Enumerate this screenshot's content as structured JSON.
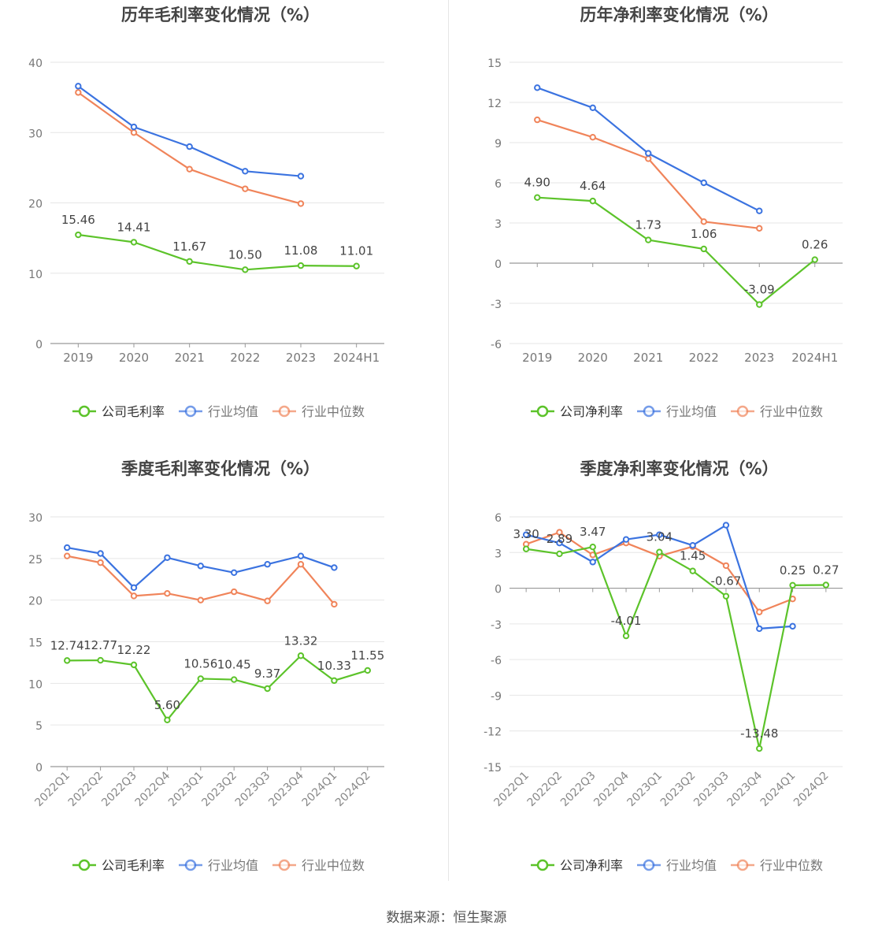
{
  "legend": {
    "industry_avg": "行业均值",
    "industry_median": "行业中位数"
  },
  "colors": {
    "company": "#5cc32a",
    "industry_avg": "#3b73e0",
    "industry_median": "#f0845a",
    "grid": "#e6e6e6",
    "axis": "#999999",
    "text": "#555555"
  },
  "chart_data": [
    {
      "id": "annual-gross",
      "type": "line",
      "title": "历年毛利率变化情况（%）",
      "categories": [
        "2019",
        "2020",
        "2021",
        "2022",
        "2023",
        "2024H1"
      ],
      "ylim": [
        0,
        40
      ],
      "yticks": [
        0,
        10,
        20,
        30,
        40
      ],
      "ytick_labels": [
        "0",
        "10",
        "20",
        "30",
        "40"
      ],
      "series": [
        {
          "key": "company",
          "name": "公司毛利率",
          "values": [
            15.46,
            14.41,
            11.67,
            10.5,
            11.08,
            11.01
          ],
          "labels": [
            "15.46",
            "14.41",
            "11.67",
            "10.50",
            "11.08",
            "11.01"
          ]
        },
        {
          "key": "industry_avg",
          "name": "行业均值",
          "values": [
            36.6,
            30.8,
            28.0,
            24.5,
            23.8,
            null
          ]
        },
        {
          "key": "industry_median",
          "name": "行业中位数",
          "values": [
            35.7,
            30.0,
            24.8,
            22.0,
            19.9,
            null
          ]
        }
      ]
    },
    {
      "id": "annual-net",
      "type": "line",
      "title": "历年净利率变化情况（%）",
      "categories": [
        "2019",
        "2020",
        "2021",
        "2022",
        "2023",
        "2024H1"
      ],
      "ylim": [
        -6,
        15
      ],
      "yticks": [
        -6,
        -3,
        0,
        3,
        6,
        9,
        12,
        15
      ],
      "ytick_labels": [
        "-6",
        "-3",
        "0",
        "3",
        "6",
        "9",
        "12",
        "15"
      ],
      "series": [
        {
          "key": "company",
          "name": "公司净利率",
          "values": [
            4.9,
            4.64,
            1.73,
            1.06,
            -3.09,
            0.26
          ],
          "labels": [
            "4.90",
            "4.64",
            "1.73",
            "1.06",
            "-3.09",
            "0.26"
          ]
        },
        {
          "key": "industry_avg",
          "name": "行业均值",
          "values": [
            13.1,
            11.6,
            8.2,
            6.0,
            3.9,
            null
          ]
        },
        {
          "key": "industry_median",
          "name": "行业中位数",
          "values": [
            10.7,
            9.4,
            7.8,
            3.1,
            2.6,
            null
          ]
        }
      ]
    },
    {
      "id": "quarterly-gross",
      "type": "line",
      "title": "季度毛利率变化情况（%）",
      "categories": [
        "2022Q1",
        "2022Q2",
        "2022Q3",
        "2022Q4",
        "2023Q1",
        "2023Q2",
        "2023Q3",
        "2023Q4",
        "2024Q1",
        "2024Q2"
      ],
      "ylim": [
        0,
        30
      ],
      "yticks": [
        0,
        5,
        10,
        15,
        20,
        25,
        30
      ],
      "ytick_labels": [
        "0",
        "5",
        "10",
        "15",
        "20",
        "25",
        "30"
      ],
      "series": [
        {
          "key": "company",
          "name": "公司毛利率",
          "values": [
            12.74,
            12.77,
            12.22,
            5.6,
            10.56,
            10.45,
            9.37,
            13.32,
            10.33,
            11.55
          ],
          "labels": [
            "12.74",
            "12.77",
            "12.22",
            "5.60",
            "10.56",
            "10.45",
            "9.37",
            "13.32",
            "10.33",
            "11.55"
          ]
        },
        {
          "key": "industry_avg",
          "name": "行业均值",
          "values": [
            26.3,
            25.6,
            21.5,
            25.1,
            24.1,
            23.3,
            24.3,
            25.3,
            23.9,
            null
          ]
        },
        {
          "key": "industry_median",
          "name": "行业中位数",
          "values": [
            25.3,
            24.5,
            20.5,
            20.8,
            20.0,
            21.0,
            19.9,
            24.3,
            19.5,
            null
          ]
        }
      ]
    },
    {
      "id": "quarterly-net",
      "type": "line",
      "title": "季度净利率变化情况（%）",
      "categories": [
        "2022Q1",
        "2022Q2",
        "2022Q3",
        "2022Q4",
        "2023Q1",
        "2023Q2",
        "2023Q3",
        "2023Q4",
        "2024Q1",
        "2024Q2"
      ],
      "ylim": [
        -15,
        6
      ],
      "yticks": [
        -15,
        -12,
        -9,
        -6,
        -3,
        0,
        3,
        6
      ],
      "ytick_labels": [
        "-15",
        "-12",
        "-9",
        "-6",
        "-3",
        "0",
        "3",
        "6"
      ],
      "series": [
        {
          "key": "company",
          "name": "公司净利率",
          "values": [
            3.3,
            2.89,
            3.47,
            -4.01,
            3.04,
            1.45,
            -0.67,
            -13.48,
            0.25,
            0.27
          ],
          "labels": [
            "3.30",
            "2.89",
            "3.47",
            "-4.01",
            "3.04",
            "1.45",
            "-0.67",
            "-13.48",
            "0.25",
            "0.27"
          ]
        },
        {
          "key": "industry_avg",
          "name": "行业均值",
          "values": [
            4.5,
            3.8,
            2.2,
            4.1,
            4.5,
            3.6,
            5.3,
            -3.4,
            -3.2,
            null
          ]
        },
        {
          "key": "industry_median",
          "name": "行业中位数",
          "values": [
            3.7,
            4.7,
            2.8,
            3.8,
            2.7,
            3.5,
            1.9,
            -2.0,
            -0.9,
            null
          ]
        }
      ]
    }
  ],
  "footer": {
    "source": "数据来源：恒生聚源"
  }
}
